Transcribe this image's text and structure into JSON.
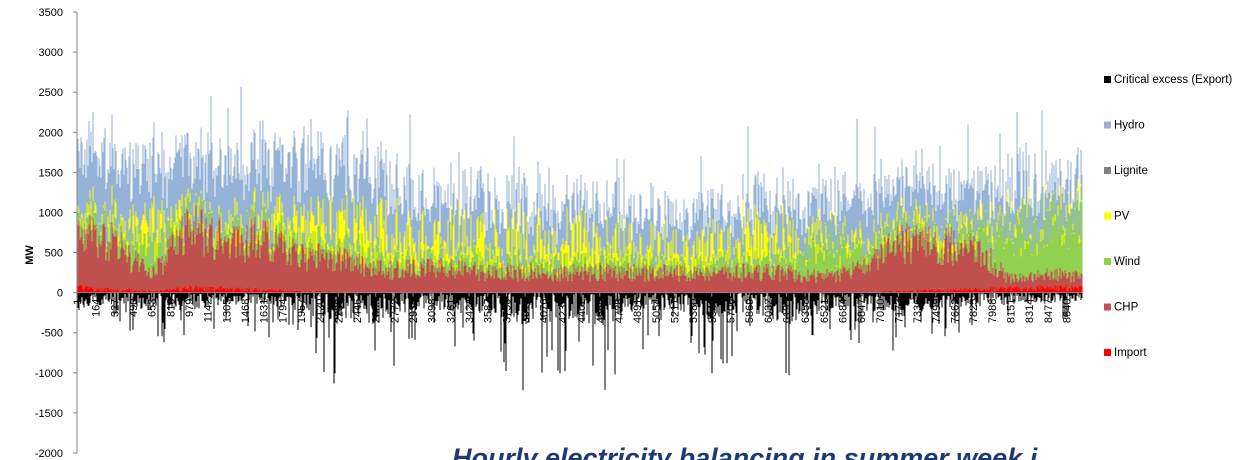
{
  "chart_data": {
    "type": "area",
    "ylabel": "MW",
    "ylim": [
      -2000,
      3500
    ],
    "yticks": [
      -2000,
      -1500,
      -1000,
      -500,
      0,
      500,
      1000,
      1500,
      2000,
      2500,
      3000,
      3500
    ],
    "x_start": 1,
    "x_end": 8784,
    "xticks": [
      1,
      164,
      327,
      490,
      653,
      816,
      979,
      1142,
      1305,
      1468,
      1631,
      1794,
      1957,
      2120,
      2283,
      2446,
      2609,
      2772,
      2935,
      3098,
      3261,
      3424,
      3587,
      3750,
      3913,
      4076,
      4239,
      4402,
      4565,
      4728,
      4891,
      5054,
      5217,
      5380,
      5543,
      5706,
      5869,
      6032,
      6195,
      6358,
      6521,
      6684,
      6847,
      7010,
      7173,
      7336,
      7499,
      7662,
      7825,
      7988,
      8151,
      8314,
      8477,
      8640
    ],
    "series": [
      {
        "name": "Critical excess (Export)",
        "color": "#000000"
      },
      {
        "name": "Hydro",
        "color": "#95b3d7"
      },
      {
        "name": "Lignite",
        "color": "#808080"
      },
      {
        "name": "PV",
        "color": "#ffff00"
      },
      {
        "name": "Wind",
        "color": "#92d050"
      },
      {
        "name": "CHP",
        "color": "#c0504d"
      },
      {
        "name": "Import",
        "color": "#ff0000"
      }
    ],
    "stack_order": [
      "Import",
      "CHP",
      "Wind",
      "PV",
      "Lignite",
      "Hydro"
    ],
    "summary_profile": [
      {
        "x": 1,
        "Import": 60,
        "CHP": 620,
        "Wind": 200,
        "PV": 100,
        "Hydro": 800,
        "Export": -700
      },
      {
        "x": 327,
        "Import": 40,
        "CHP": 600,
        "Wind": 150,
        "PV": 150,
        "Hydro": 750,
        "Export": -300
      },
      {
        "x": 653,
        "Import": 20,
        "CHP": 200,
        "Wind": 350,
        "PV": 300,
        "Hydro": 700,
        "Export": -700
      },
      {
        "x": 979,
        "Import": 60,
        "CHP": 750,
        "Wind": 150,
        "PV": 100,
        "Hydro": 650,
        "Export": -650
      },
      {
        "x": 1305,
        "Import": 50,
        "CHP": 650,
        "Wind": 100,
        "PV": 150,
        "Hydro": 700,
        "Export": -400
      },
      {
        "x": 1631,
        "Import": 40,
        "CHP": 620,
        "Wind": 150,
        "PV": 200,
        "Hydro": 700,
        "Export": -500
      },
      {
        "x": 1957,
        "Import": 20,
        "CHP": 450,
        "Wind": 150,
        "PV": 300,
        "Hydro": 750,
        "Export": -750
      },
      {
        "x": 2283,
        "Import": 10,
        "CHP": 400,
        "Wind": 150,
        "PV": 350,
        "Hydro": 750,
        "Export": -1150
      },
      {
        "x": 2609,
        "Import": 0,
        "CHP": 280,
        "Wind": 200,
        "PV": 400,
        "Hydro": 600,
        "Export": -1150
      },
      {
        "x": 2935,
        "Import": 0,
        "CHP": 300,
        "Wind": 100,
        "PV": 350,
        "Hydro": 600,
        "Export": -600
      },
      {
        "x": 3261,
        "Import": 0,
        "CHP": 300,
        "Wind": 150,
        "PV": 350,
        "Hydro": 500,
        "Export": -700
      },
      {
        "x": 3587,
        "Import": 0,
        "CHP": 250,
        "Wind": 200,
        "PV": 350,
        "Hydro": 500,
        "Export": -800
      },
      {
        "x": 3913,
        "Import": 0,
        "CHP": 260,
        "Wind": 150,
        "PV": 350,
        "Hydro": 450,
        "Export": -1200
      },
      {
        "x": 4239,
        "Import": 0,
        "CHP": 250,
        "Wind": 150,
        "PV": 350,
        "Hydro": 450,
        "Export": -1050
      },
      {
        "x": 4565,
        "Import": 0,
        "CHP": 260,
        "Wind": 150,
        "PV": 350,
        "Hydro": 450,
        "Export": -1250
      },
      {
        "x": 4891,
        "Import": 0,
        "CHP": 250,
        "Wind": 150,
        "PV": 300,
        "Hydro": 450,
        "Export": -700
      },
      {
        "x": 5217,
        "Import": 0,
        "CHP": 250,
        "Wind": 100,
        "PV": 300,
        "Hydro": 450,
        "Export": -600
      },
      {
        "x": 5543,
        "Import": 0,
        "CHP": 250,
        "Wind": 150,
        "PV": 350,
        "Hydro": 450,
        "Export": -1000
      },
      {
        "x": 5869,
        "Import": 0,
        "CHP": 260,
        "Wind": 150,
        "PV": 350,
        "Hydro": 450,
        "Export": -650
      },
      {
        "x": 6195,
        "Import": 0,
        "CHP": 250,
        "Wind": 200,
        "PV": 350,
        "Hydro": 450,
        "Export": -1200
      },
      {
        "x": 6521,
        "Import": 0,
        "CHP": 200,
        "Wind": 500,
        "PV": 150,
        "Hydro": 450,
        "Export": -700
      },
      {
        "x": 6847,
        "Import": 0,
        "CHP": 300,
        "Wind": 200,
        "PV": 150,
        "Hydro": 550,
        "Export": -600
      },
      {
        "x": 7173,
        "Import": 20,
        "CHP": 600,
        "Wind": 150,
        "PV": 100,
        "Hydro": 500,
        "Export": -900
      },
      {
        "x": 7499,
        "Import": 30,
        "CHP": 550,
        "Wind": 150,
        "PV": 150,
        "Hydro": 450,
        "Export": -550
      },
      {
        "x": 7825,
        "Import": 40,
        "CHP": 500,
        "Wind": 200,
        "PV": 150,
        "Hydro": 450,
        "Export": -500
      },
      {
        "x": 8151,
        "Import": 50,
        "CHP": 150,
        "Wind": 600,
        "PV": 100,
        "Hydro": 450,
        "Export": -450
      },
      {
        "x": 8477,
        "Import": 60,
        "CHP": 150,
        "Wind": 650,
        "PV": 100,
        "Hydro": 450,
        "Export": -350
      },
      {
        "x": 8784,
        "Import": 60,
        "CHP": 150,
        "Wind": 700,
        "PV": 100,
        "Hydro": 400,
        "Export": -300
      }
    ]
  },
  "overlay_title": "Hourly electricity balancing in summer week i"
}
